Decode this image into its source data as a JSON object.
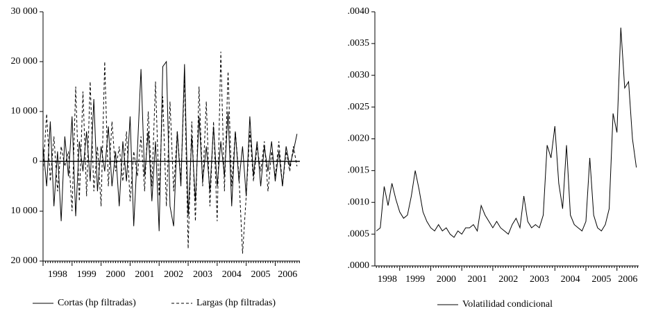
{
  "chart_data": [
    {
      "type": "line",
      "x": [
        1998,
        1998.125,
        1998.25,
        1998.375,
        1998.5,
        1998.625,
        1998.75,
        1998.875,
        1999,
        1999.125,
        1999.25,
        1999.375,
        1999.5,
        1999.625,
        1999.75,
        1999.875,
        2000,
        2000.125,
        2000.25,
        2000.375,
        2000.5,
        2000.625,
        2000.75,
        2000.875,
        2001,
        2001.125,
        2001.25,
        2001.375,
        2001.5,
        2001.625,
        2001.75,
        2001.875,
        2002,
        2002.125,
        2002.25,
        2002.375,
        2002.5,
        2002.625,
        2002.75,
        2002.875,
        2003,
        2003.125,
        2003.25,
        2003.375,
        2003.5,
        2003.625,
        2003.75,
        2003.875,
        2004,
        2004.125,
        2004.25,
        2004.375,
        2004.5,
        2004.625,
        2004.75,
        2004.875,
        2005,
        2005.125,
        2005.25,
        2005.375,
        2005.5,
        2005.625,
        2005.75,
        2005.875,
        2006,
        2006.125,
        2006.25,
        2006.375,
        2006.5,
        2006.625,
        2006.75
      ],
      "series": [
        {
          "name": "Cortas (hp filtradas)",
          "color": "#000000",
          "dash": false,
          "values": [
            3000,
            -5000,
            8000,
            -9000,
            2000,
            -12000,
            5000,
            -3000,
            9000,
            -11000,
            4000,
            -2000,
            6000,
            -4000,
            12500,
            -6000,
            3000,
            -2000,
            7000,
            -5000,
            2000,
            -9000,
            4000,
            -4000,
            9000,
            -13000,
            2000,
            18500,
            -3000,
            6000,
            -8000,
            4000,
            -14000,
            19000,
            20000,
            -9000,
            -13000,
            6000,
            -5000,
            19500,
            -11000,
            5000,
            -8000,
            9000,
            -4000,
            3000,
            -6000,
            7000,
            -5000,
            4000,
            -3000,
            10000,
            -9000,
            6000,
            -4000,
            3000,
            -7000,
            9000,
            -3000,
            4000,
            -5000,
            3000,
            -2000,
            4000,
            -4000,
            2000,
            -5000,
            3000,
            -1000,
            2000,
            5500
          ]
        },
        {
          "name": "Largas (hp filtradas)",
          "color": "#000000",
          "dash": true,
          "values": [
            -2000,
            9500,
            -4000,
            5000,
            -6000,
            3000,
            -1000,
            2000,
            -10000,
            15000,
            -8000,
            14000,
            -7000,
            16000,
            -6000,
            3000,
            -9000,
            20000,
            -5000,
            8000,
            -2000,
            3000,
            -4000,
            6000,
            -8000,
            2000,
            -3000,
            5000,
            -6000,
            10000,
            -5000,
            16000,
            -7000,
            13000,
            -9000,
            12000,
            -6000,
            6000,
            -4000,
            17000,
            -17500,
            8000,
            -12000,
            15000,
            -5000,
            12000,
            -9000,
            8000,
            -12000,
            22000,
            -6000,
            18000,
            -5000,
            6000,
            -3000,
            -18500,
            -7000,
            6000,
            -4000,
            3000,
            -2000,
            4000,
            -6000,
            2000,
            -3000,
            4000,
            -5000,
            2000,
            -2000,
            3000,
            -1000
          ]
        }
      ],
      "xlim": [
        1998,
        2006.85
      ],
      "xticks": [
        1998,
        1999,
        2000,
        2001,
        2002,
        2003,
        2004,
        2005,
        2006
      ],
      "ylim": [
        -20000,
        30000
      ],
      "yticks": [
        {
          "value": -20000,
          "label": "20 000"
        },
        {
          "value": -10000,
          "label": "10 000"
        },
        0,
        {
          "value": 10000,
          "label": "10 000"
        },
        {
          "value": 20000,
          "label": "20 000"
        },
        {
          "value": 30000,
          "label": "30 000"
        }
      ]
    },
    {
      "type": "line",
      "x": [
        1998.25,
        1998.375,
        1998.5,
        1998.625,
        1998.75,
        1998.875,
        1999,
        1999.125,
        1999.25,
        1999.375,
        1999.5,
        1999.625,
        1999.75,
        1999.875,
        2000,
        2000.125,
        2000.25,
        2000.375,
        2000.5,
        2000.625,
        2000.75,
        2000.875,
        2001,
        2001.125,
        2001.25,
        2001.375,
        2001.5,
        2001.625,
        2001.75,
        2001.875,
        2002,
        2002.125,
        2002.25,
        2002.375,
        2002.5,
        2002.625,
        2002.75,
        2002.875,
        2003,
        2003.125,
        2003.25,
        2003.375,
        2003.5,
        2003.625,
        2003.75,
        2003.875,
        2004,
        2004.125,
        2004.25,
        2004.375,
        2004.5,
        2004.625,
        2004.75,
        2004.875,
        2005,
        2005.125,
        2005.25,
        2005.375,
        2005.5,
        2005.625,
        2005.75,
        2005.875,
        2006,
        2006.125,
        2006.25,
        2006.375,
        2006.5,
        2006.625
      ],
      "series": [
        {
          "name": "Volatilidad condicional",
          "color": "#000000",
          "dash": false,
          "values": [
            0.00055,
            0.0006,
            0.00125,
            0.00095,
            0.0013,
            0.00105,
            0.00085,
            0.00075,
            0.0008,
            0.0011,
            0.0015,
            0.0012,
            0.00085,
            0.0007,
            0.0006,
            0.00055,
            0.00065,
            0.00055,
            0.0006,
            0.0005,
            0.00045,
            0.00055,
            0.0005,
            0.0006,
            0.0006,
            0.00065,
            0.00055,
            0.00095,
            0.0008,
            0.0007,
            0.0006,
            0.0007,
            0.0006,
            0.00055,
            0.0005,
            0.00065,
            0.00075,
            0.0006,
            0.0011,
            0.0007,
            0.0006,
            0.00065,
            0.0006,
            0.0008,
            0.0019,
            0.0017,
            0.0022,
            0.0013,
            0.0009,
            0.0019,
            0.0008,
            0.00065,
            0.0006,
            0.00055,
            0.0007,
            0.0017,
            0.0008,
            0.0006,
            0.00055,
            0.00065,
            0.0009,
            0.0024,
            0.0021,
            0.00375,
            0.0028,
            0.0029,
            0.002,
            0.00155
          ]
        }
      ],
      "xlim": [
        1998.2,
        2006.7
      ],
      "xticks": [
        1998,
        1999,
        2000,
        2001,
        2002,
        2003,
        2004,
        2005,
        2006
      ],
      "ylim": [
        0,
        0.004
      ],
      "yticks": [
        {
          "value": 0,
          "label": ".0000"
        },
        {
          "value": 0.0005,
          "label": ".0005"
        },
        {
          "value": 0.001,
          "label": ".0010"
        },
        {
          "value": 0.0015,
          "label": ".0015"
        },
        {
          "value": 0.002,
          "label": ".0020"
        },
        {
          "value": 0.0025,
          "label": ".0025"
        },
        {
          "value": 0.003,
          "label": ".0030"
        },
        {
          "value": 0.0035,
          "label": ".0035"
        },
        {
          "value": 0.004,
          "label": ".0040"
        }
      ]
    }
  ]
}
